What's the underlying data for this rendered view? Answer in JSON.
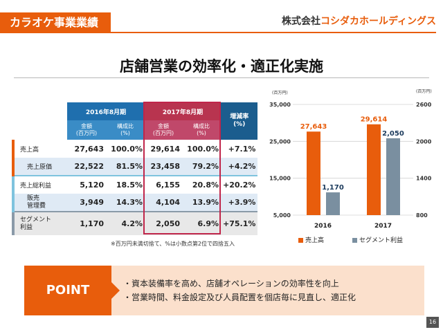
{
  "header": {
    "section_label": "カラオケ事業業績",
    "company_prefix": "株式会社",
    "company_name": "コシダカホールディングス"
  },
  "title": "店舗営業の効率化・適正化実施",
  "table": {
    "period_2016": "2016年8月期",
    "period_2017": "2017年8月期",
    "growth_header": "増減率\n(%)",
    "col_amount": "金額\n(百万円)",
    "col_ratio": "構成比\n(%)",
    "rows": [
      {
        "label": "売上高",
        "a2016": "27,643",
        "r2016": "100.0%",
        "a2017": "29,614",
        "r2017": "100.0%",
        "growth": "+7.1%"
      },
      {
        "label": "売上原価",
        "a2016": "22,522",
        "r2016": "81.5%",
        "a2017": "23,458",
        "r2017": "79.2%",
        "growth": "+4.2%"
      },
      {
        "label": "売上総利益",
        "a2016": "5,120",
        "r2016": "18.5%",
        "a2017": "6,155",
        "r2017": "20.8%",
        "growth": "+20.2%"
      },
      {
        "label": "販売\n管理費",
        "a2016": "3,949",
        "r2016": "14.3%",
        "a2017": "4,104",
        "r2017": "13.9%",
        "growth": "+3.9%"
      },
      {
        "label": "セグメント\n利益",
        "a2016": "1,170",
        "r2016": "4.2%",
        "a2017": "2,050",
        "r2017": "6.9%",
        "growth": "+75.1%"
      }
    ],
    "note": "※百万円未満切捨て、%は小数点第2位で四捨五入"
  },
  "chart_data": {
    "type": "bar",
    "categories": [
      "2016",
      "2017"
    ],
    "series": [
      {
        "name": "売上高",
        "axis": "left",
        "values": [
          27643,
          29614
        ],
        "labels": [
          "27,643",
          "29,614"
        ],
        "color": "#e85d0c"
      },
      {
        "name": "セグメント利益",
        "axis": "right",
        "values": [
          1170,
          2050
        ],
        "labels": [
          "1,170",
          "2,050"
        ],
        "color": "#7a8fa0"
      }
    ],
    "left_axis": {
      "unit": "(百万円)",
      "min": 5000,
      "max": 35000,
      "ticks": [
        "35,000",
        "25,000",
        "15,000",
        "5,000"
      ],
      "tick_values": [
        35000,
        25000,
        15000,
        5000
      ]
    },
    "right_axis": {
      "unit": "(百万円)",
      "min": 800,
      "max": 2600,
      "ticks": [
        "2600",
        "2000",
        "1400",
        "800"
      ],
      "tick_values": [
        2600,
        2000,
        1400,
        800
      ]
    },
    "legend": "bottom"
  },
  "point": {
    "label": "POINT",
    "items": [
      "・資本装備率を高め、店舗オペレーションの効率性を向上",
      "・営業時間、料金設定及び人員配置を個店毎に見直し、適正化"
    ]
  },
  "page_number": "16",
  "colors": {
    "orange": "#e85d0c",
    "blue": "#1f6fae",
    "red": "#c0254a",
    "gray": "#7a8fa0"
  }
}
